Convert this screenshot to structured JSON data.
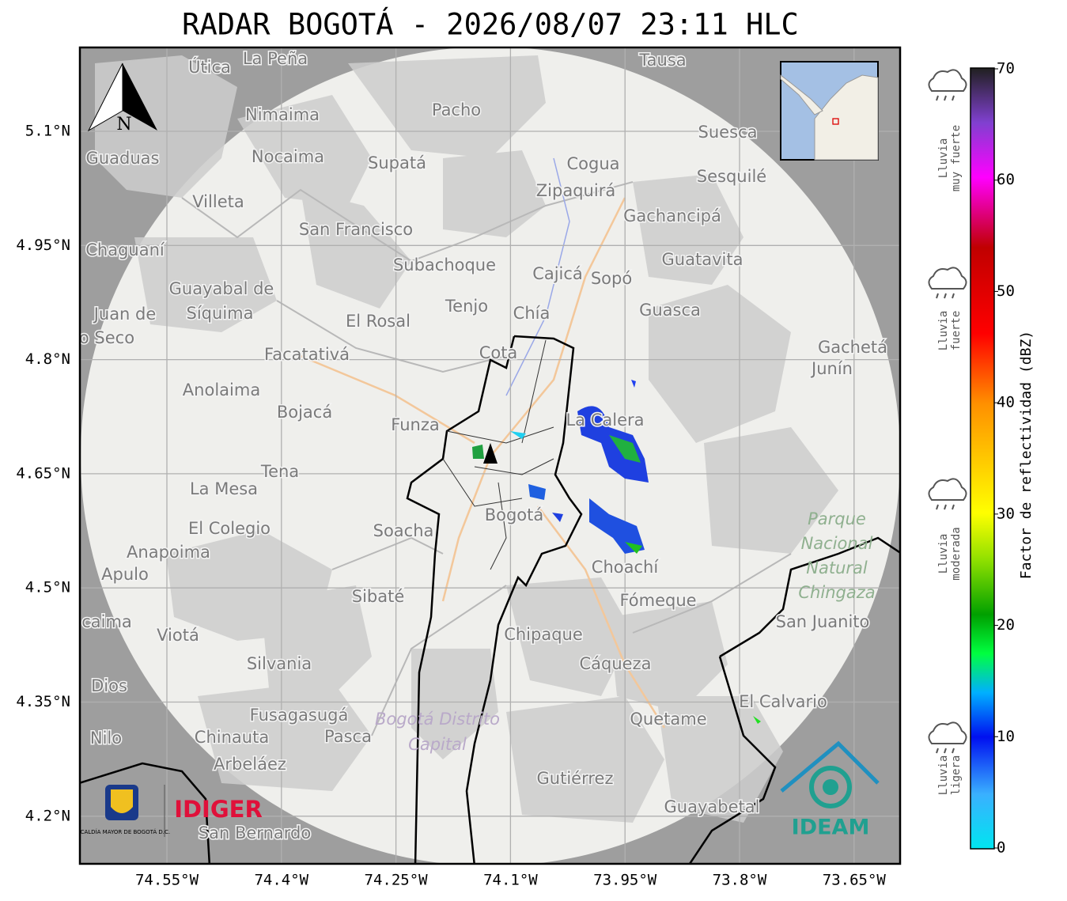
{
  "header": {
    "title": "RADAR BOGOTÁ - 2026/08/07 23:11 HLC"
  },
  "map": {
    "lat_ticks": [
      {
        "value": 5.1,
        "label": "5.1°N"
      },
      {
        "value": 4.95,
        "label": "4.95°N"
      },
      {
        "value": 4.8,
        "label": "4.8°N"
      },
      {
        "value": 4.65,
        "label": "4.65°N"
      },
      {
        "value": 4.5,
        "label": "4.5°N"
      },
      {
        "value": 4.35,
        "label": "4.35°N"
      },
      {
        "value": 4.2,
        "label": "4.2°N"
      }
    ],
    "lon_ticks": [
      {
        "value": -74.55,
        "label": "74.55°W"
      },
      {
        "value": -74.4,
        "label": "74.4°W"
      },
      {
        "value": -74.25,
        "label": "74.25°W"
      },
      {
        "value": -74.1,
        "label": "74.1°W"
      },
      {
        "value": -73.95,
        "label": "73.95°W"
      },
      {
        "value": -73.8,
        "label": "73.8°W"
      },
      {
        "value": -73.65,
        "label": "73.65°W"
      }
    ],
    "north_arrow": "N",
    "places": [
      "La Peña",
      "Útica",
      "Tausa",
      "Pacho",
      "Nimaima",
      "Nocaima",
      "Supatá",
      "Guaduas",
      "Suesca",
      "Cogua",
      "Sesquilé",
      "Zipaquirá",
      "Villeta",
      "Gachancipá",
      "San Francisco",
      "Chaguaní",
      "Guatavita",
      "Subachoque",
      "Cajicá",
      "Sopó",
      "Guayabal de",
      "Síquima",
      "Tenjo",
      "Chía",
      "Guasca",
      "Juan de",
      "o Seco",
      "El Rosal",
      "Cota",
      "Facatativá",
      "Gachetá",
      "Junín",
      "Anolaima",
      "La Calera",
      "Bojacá",
      "Funza",
      "Tena",
      "La Mesa",
      "Bogotá",
      "Soacha",
      "El Colegio",
      "Anapoima",
      "Apulo",
      "Choachí",
      "Sibaté",
      "Fómeque",
      "San Juanito",
      "Chipaque",
      "caima",
      "Viotá",
      "Silvania",
      "Cáqueza",
      "Dios",
      "El Calvario",
      "Fusagasugá",
      "Quetame",
      "Nilo",
      "Chinauta",
      "Pasca",
      "Arbeláez",
      "Gutiérrez",
      "Guayabetal",
      "San Bernardo"
    ],
    "park": [
      "Parque",
      "Nacional",
      "Natural",
      "Chingaza"
    ],
    "district": [
      "Bogotá Distrito",
      "Capital"
    ]
  },
  "logos": {
    "alcaldia": "ALCALDÍA MAYOR DE BOGOTÁ D.C.",
    "idiger": "IDIGER",
    "ideam": "IDEAM"
  },
  "colorbar": {
    "label": "Factor de reflectividad (dBZ)",
    "range": [
      0,
      70
    ],
    "ticks": [
      0,
      10,
      20,
      30,
      40,
      50,
      60,
      70
    ]
  },
  "rain_legend": [
    [
      "Lluvia",
      "muy fuerte"
    ],
    [
      "Lluvia",
      "fuerte"
    ],
    [
      "Lluvia",
      "moderada"
    ],
    [
      "Lluvia",
      "ligera"
    ]
  ]
}
